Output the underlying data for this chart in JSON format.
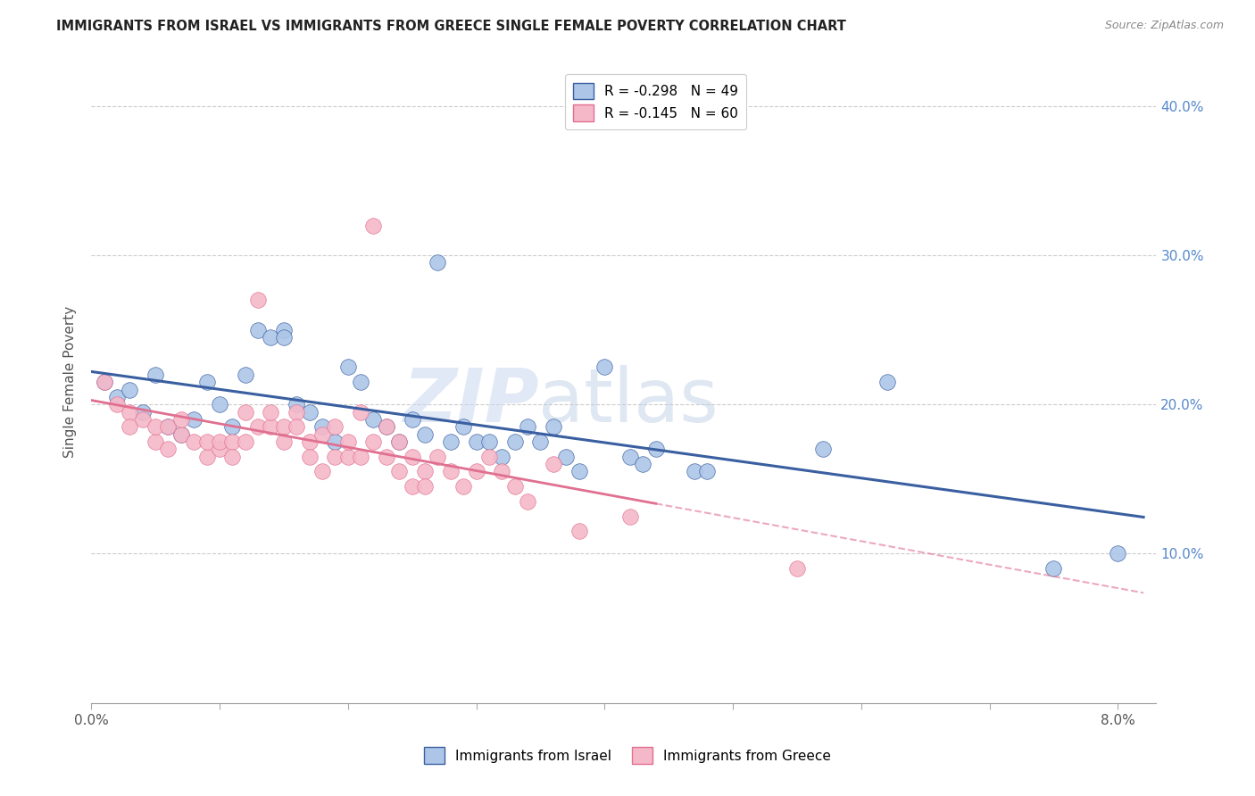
{
  "title": "IMMIGRANTS FROM ISRAEL VS IMMIGRANTS FROM GREECE SINGLE FEMALE POVERTY CORRELATION CHART",
  "source": "Source: ZipAtlas.com",
  "ylabel": "Single Female Poverty",
  "watermark": "ZIPatlas",
  "israel_color": "#adc6e8",
  "greece_color": "#f5b8c8",
  "israel_line_color": "#3a5fa0",
  "greece_line_color": "#e07090",
  "israel_scatter": [
    [
      0.001,
      0.215
    ],
    [
      0.002,
      0.205
    ],
    [
      0.003,
      0.21
    ],
    [
      0.004,
      0.195
    ],
    [
      0.005,
      0.22
    ],
    [
      0.006,
      0.185
    ],
    [
      0.007,
      0.18
    ],
    [
      0.008,
      0.19
    ],
    [
      0.009,
      0.215
    ],
    [
      0.01,
      0.2
    ],
    [
      0.011,
      0.185
    ],
    [
      0.012,
      0.22
    ],
    [
      0.013,
      0.25
    ],
    [
      0.014,
      0.245
    ],
    [
      0.015,
      0.25
    ],
    [
      0.015,
      0.245
    ],
    [
      0.016,
      0.2
    ],
    [
      0.017,
      0.195
    ],
    [
      0.018,
      0.185
    ],
    [
      0.019,
      0.175
    ],
    [
      0.02,
      0.225
    ],
    [
      0.021,
      0.215
    ],
    [
      0.022,
      0.19
    ],
    [
      0.023,
      0.185
    ],
    [
      0.024,
      0.175
    ],
    [
      0.025,
      0.19
    ],
    [
      0.026,
      0.18
    ],
    [
      0.027,
      0.295
    ],
    [
      0.028,
      0.175
    ],
    [
      0.029,
      0.185
    ],
    [
      0.03,
      0.175
    ],
    [
      0.031,
      0.175
    ],
    [
      0.032,
      0.165
    ],
    [
      0.033,
      0.175
    ],
    [
      0.034,
      0.185
    ],
    [
      0.035,
      0.175
    ],
    [
      0.036,
      0.185
    ],
    [
      0.037,
      0.165
    ],
    [
      0.038,
      0.155
    ],
    [
      0.04,
      0.225
    ],
    [
      0.042,
      0.165
    ],
    [
      0.043,
      0.16
    ],
    [
      0.044,
      0.17
    ],
    [
      0.047,
      0.155
    ],
    [
      0.048,
      0.155
    ],
    [
      0.057,
      0.17
    ],
    [
      0.062,
      0.215
    ],
    [
      0.075,
      0.09
    ],
    [
      0.08,
      0.1
    ]
  ],
  "greece_scatter": [
    [
      0.001,
      0.215
    ],
    [
      0.002,
      0.2
    ],
    [
      0.003,
      0.195
    ],
    [
      0.003,
      0.185
    ],
    [
      0.004,
      0.19
    ],
    [
      0.005,
      0.175
    ],
    [
      0.005,
      0.185
    ],
    [
      0.006,
      0.17
    ],
    [
      0.006,
      0.185
    ],
    [
      0.007,
      0.18
    ],
    [
      0.007,
      0.19
    ],
    [
      0.008,
      0.175
    ],
    [
      0.009,
      0.165
    ],
    [
      0.009,
      0.175
    ],
    [
      0.01,
      0.17
    ],
    [
      0.01,
      0.175
    ],
    [
      0.011,
      0.175
    ],
    [
      0.011,
      0.165
    ],
    [
      0.012,
      0.195
    ],
    [
      0.012,
      0.175
    ],
    [
      0.013,
      0.185
    ],
    [
      0.013,
      0.27
    ],
    [
      0.014,
      0.185
    ],
    [
      0.014,
      0.195
    ],
    [
      0.015,
      0.185
    ],
    [
      0.015,
      0.175
    ],
    [
      0.016,
      0.195
    ],
    [
      0.016,
      0.185
    ],
    [
      0.017,
      0.175
    ],
    [
      0.017,
      0.165
    ],
    [
      0.018,
      0.18
    ],
    [
      0.018,
      0.155
    ],
    [
      0.019,
      0.185
    ],
    [
      0.019,
      0.165
    ],
    [
      0.02,
      0.165
    ],
    [
      0.02,
      0.175
    ],
    [
      0.021,
      0.195
    ],
    [
      0.021,
      0.165
    ],
    [
      0.022,
      0.175
    ],
    [
      0.022,
      0.32
    ],
    [
      0.023,
      0.185
    ],
    [
      0.023,
      0.165
    ],
    [
      0.024,
      0.175
    ],
    [
      0.024,
      0.155
    ],
    [
      0.025,
      0.165
    ],
    [
      0.025,
      0.145
    ],
    [
      0.026,
      0.155
    ],
    [
      0.026,
      0.145
    ],
    [
      0.027,
      0.165
    ],
    [
      0.028,
      0.155
    ],
    [
      0.029,
      0.145
    ],
    [
      0.03,
      0.155
    ],
    [
      0.031,
      0.165
    ],
    [
      0.032,
      0.155
    ],
    [
      0.033,
      0.145
    ],
    [
      0.034,
      0.135
    ],
    [
      0.036,
      0.16
    ],
    [
      0.038,
      0.115
    ],
    [
      0.042,
      0.125
    ],
    [
      0.055,
      0.09
    ]
  ],
  "xlim": [
    0.0,
    0.083
  ],
  "ylim": [
    0.0,
    0.43
  ],
  "israel_R": -0.298,
  "greece_R": -0.145,
  "israel_N": 49,
  "greece_N": 60,
  "right_ytick_vals": [
    0.1,
    0.2,
    0.3,
    0.4
  ],
  "right_ytick_labels": [
    "10.0%",
    "20.0%",
    "30.0%",
    "40.0%"
  ],
  "xtick_vals": [
    0.0,
    0.01,
    0.02,
    0.03,
    0.04,
    0.05,
    0.06,
    0.07,
    0.08
  ],
  "xtick_show_only": [
    0.0,
    0.08
  ]
}
